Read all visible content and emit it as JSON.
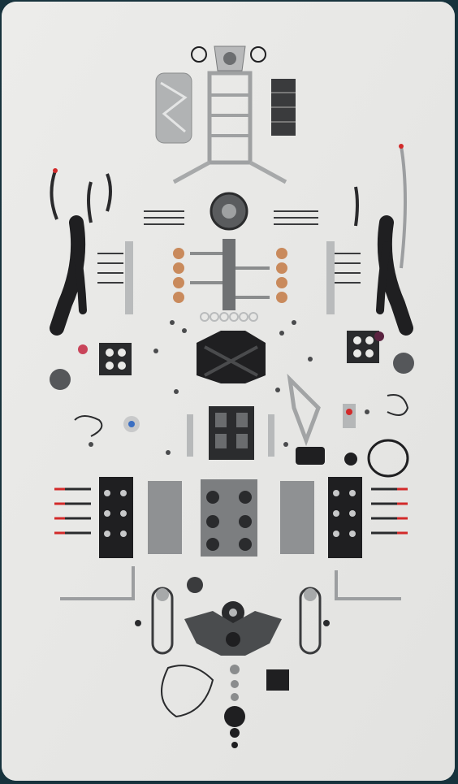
{
  "image": {
    "background_color": "#e9e9e7",
    "frame_color": "#17333d",
    "part_colors": {
      "dark": "#1f1f21",
      "metal": "#a9abac",
      "light_metal": "#c9cacb",
      "copper": "#c98a5c",
      "red_tip": "#d22a2a"
    }
  }
}
